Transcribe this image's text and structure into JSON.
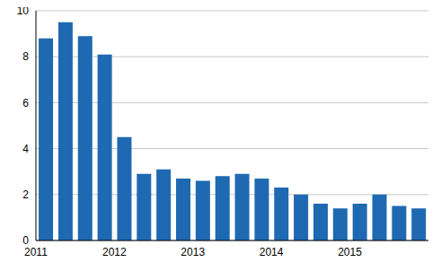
{
  "chart_data": {
    "type": "bar",
    "categories": [
      "2011",
      null,
      null,
      null,
      "2012",
      null,
      null,
      null,
      "2013",
      null,
      null,
      null,
      "2014",
      null,
      null,
      null,
      "2015",
      null,
      null,
      null
    ],
    "values": [
      8.8,
      9.5,
      8.9,
      8.1,
      4.5,
      2.9,
      3.1,
      2.7,
      2.6,
      2.8,
      2.9,
      2.7,
      2.3,
      2.0,
      1.6,
      1.4,
      1.6,
      2.0,
      1.5,
      1.4
    ],
    "color": "#1f69b2",
    "ylim": [
      0,
      10
    ],
    "yticks": [
      0,
      2,
      4,
      6,
      8,
      10
    ],
    "grid": true
  }
}
